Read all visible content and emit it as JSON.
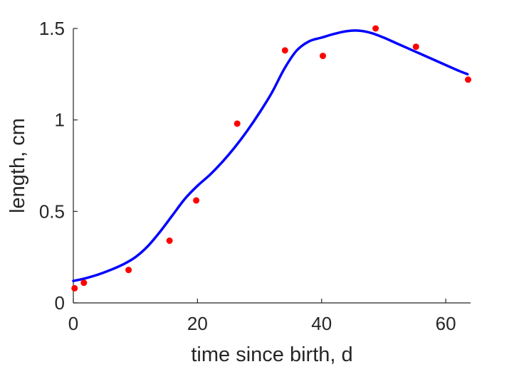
{
  "chart_data": {
    "type": "scatter",
    "title": "",
    "xlabel": "time since birth, d",
    "ylabel": "length, cm",
    "xlim": [
      0,
      64
    ],
    "ylim": [
      0,
      1.5
    ],
    "xticks": [
      0,
      20,
      40,
      60
    ],
    "xtick_labels": [
      "0",
      "20",
      "40",
      "60"
    ],
    "yticks": [
      0,
      0.5,
      1,
      1.5
    ],
    "ytick_labels": [
      "0",
      "0.5",
      "1",
      "1.5"
    ],
    "grid": false,
    "legend": "none",
    "series": [
      {
        "kind": "scatter",
        "color": "#ff0000",
        "x": [
          0.2,
          1.7,
          8.9,
          15.5,
          19.8,
          26.4,
          34.1,
          40.2,
          48.7,
          55.2,
          63.6
        ],
        "y": [
          0.08,
          0.11,
          0.18,
          0.34,
          0.56,
          0.98,
          1.38,
          1.35,
          1.5,
          1.4,
          1.22
        ]
      },
      {
        "kind": "line",
        "color": "#0000ff",
        "x": [
          0,
          2,
          4,
          6,
          8,
          10,
          12,
          14,
          16,
          18,
          20,
          22,
          24,
          26,
          28,
          30,
          32,
          34,
          36,
          38,
          40,
          42,
          44,
          46,
          48,
          50,
          52,
          54,
          56,
          58,
          60,
          62,
          63.5
        ],
        "y": [
          0.12,
          0.135,
          0.155,
          0.18,
          0.21,
          0.25,
          0.31,
          0.39,
          0.48,
          0.57,
          0.64,
          0.7,
          0.77,
          0.85,
          0.94,
          1.04,
          1.15,
          1.28,
          1.38,
          1.43,
          1.45,
          1.47,
          1.485,
          1.488,
          1.475,
          1.45,
          1.42,
          1.39,
          1.36,
          1.33,
          1.3,
          1.27,
          1.25
        ]
      }
    ]
  }
}
